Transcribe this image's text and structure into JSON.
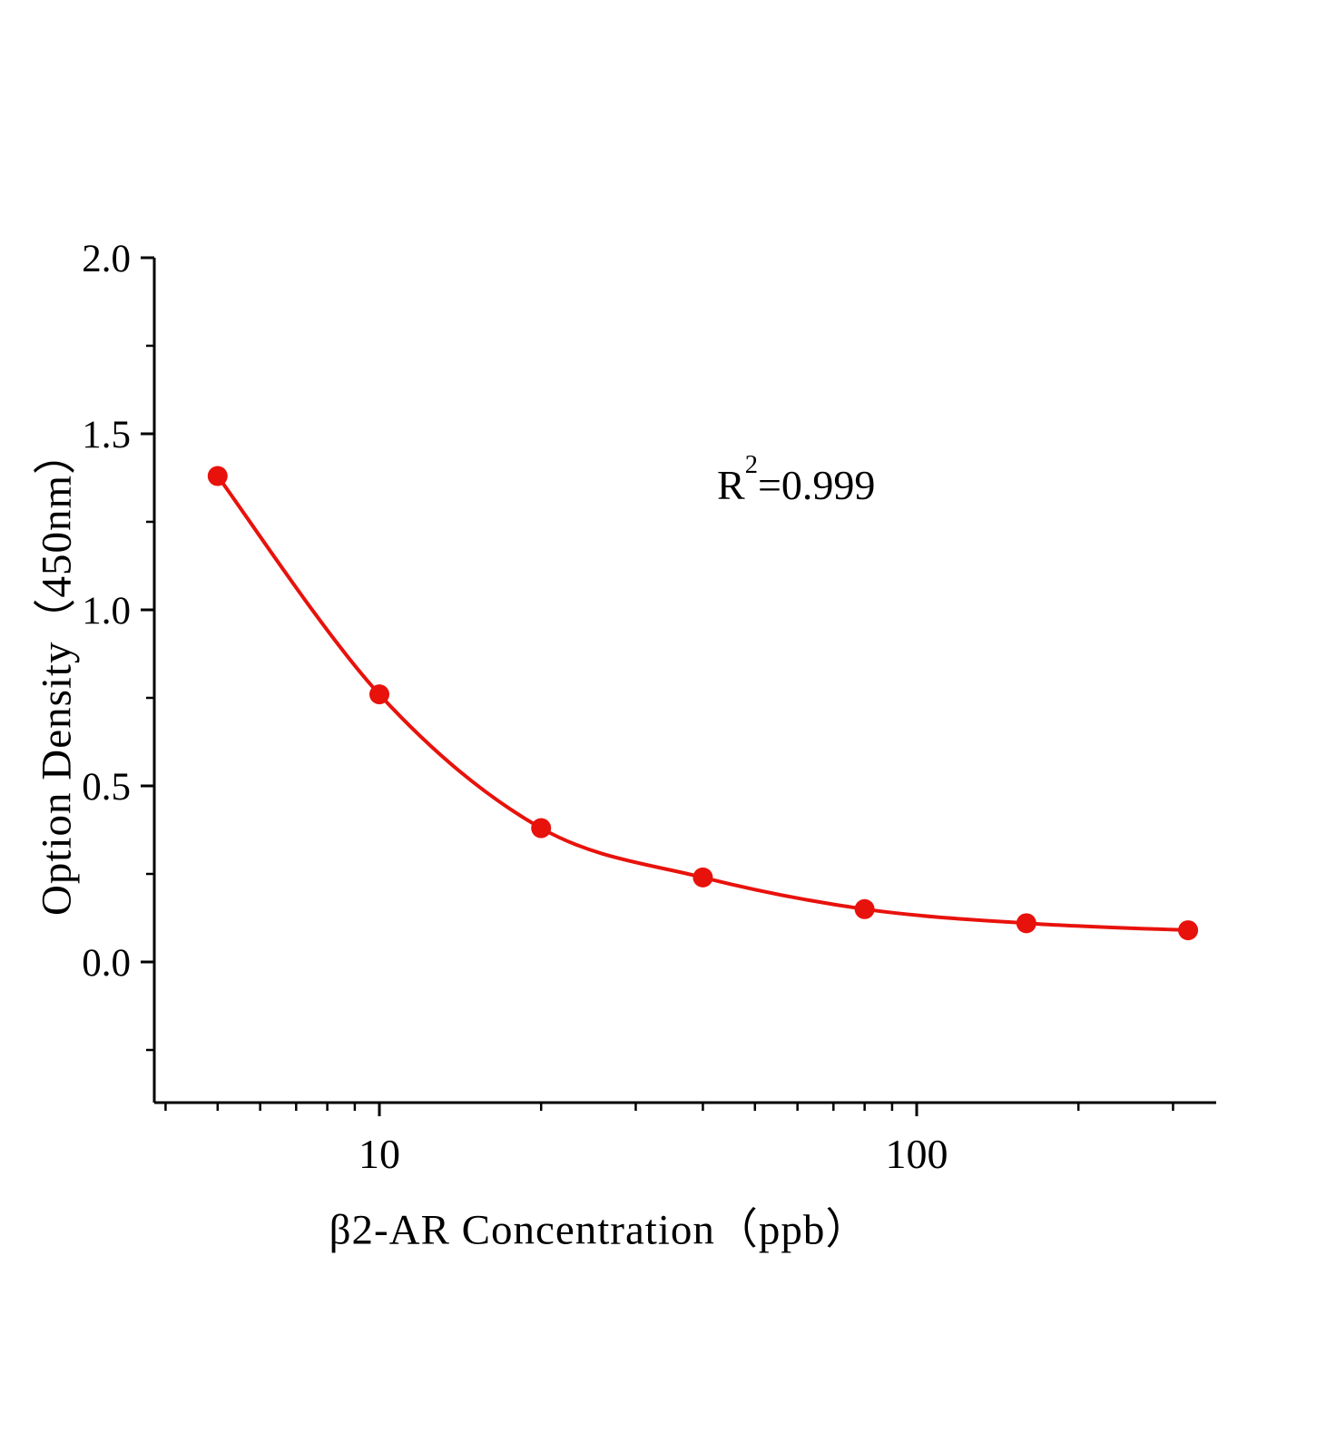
{
  "page": {
    "background": "#ffffff"
  },
  "chart_data": {
    "type": "scatter",
    "x_scale": "log",
    "x": [
      5,
      10,
      20,
      40,
      80,
      160,
      320
    ],
    "y": [
      1.38,
      0.76,
      0.38,
      0.24,
      0.15,
      0.11,
      0.09
    ],
    "xlabel": "β2-AR  Concentration（ppb）",
    "ylabel": "Option Density（450nm）",
    "x_ticks": [
      {
        "v": 10,
        "label": "10"
      },
      {
        "v": 100,
        "label": "100"
      }
    ],
    "x_minor_ticks": [
      4,
      5,
      6,
      7,
      8,
      9,
      20,
      30,
      40,
      50,
      60,
      70,
      80,
      90,
      200,
      300
    ],
    "y_ticks": [
      {
        "v": 2.0,
        "label": "2.0"
      },
      {
        "v": 1.5,
        "label": "1.5"
      },
      {
        "v": 1.0,
        "label": "1.0"
      },
      {
        "v": 0.5,
        "label": "0.5"
      },
      {
        "v": 0.0,
        "label": "0.0"
      }
    ],
    "y_minor_ticks": [
      1.75,
      1.25,
      0.75,
      0.25,
      -0.25
    ],
    "xlim": [
      3.81,
      360
    ],
    "ylim": [
      -0.4,
      2.0
    ],
    "annotation": {
      "prefix": "R",
      "sup": "2",
      "suffix": "=0.999"
    },
    "line_color": "#e8120c",
    "marker_color": "#e8120c",
    "axis_color": "#000000",
    "grid": false,
    "legend": false
  }
}
